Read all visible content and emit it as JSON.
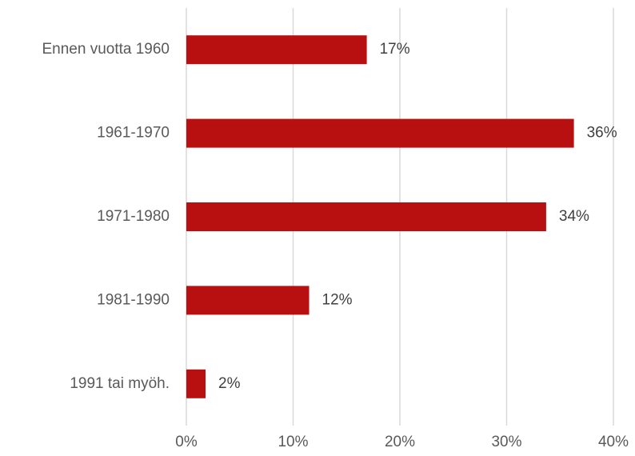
{
  "chart_data": {
    "type": "bar",
    "orientation": "horizontal",
    "categories": [
      "Ennen vuotta 1960",
      "1961-1970",
      "1971-1980",
      "1981-1990",
      "1991 tai myöh."
    ],
    "values": [
      16.9,
      36.3,
      33.7,
      11.5,
      1.8
    ],
    "value_labels": [
      "17%",
      "36%",
      "34%",
      "12%",
      "2%"
    ],
    "color": "#b81010",
    "xlim": [
      0,
      40
    ],
    "xticks": [
      {
        "value": 0,
        "label": "0%"
      },
      {
        "value": 10,
        "label": "10%"
      },
      {
        "value": 20,
        "label": "20%"
      },
      {
        "value": 30,
        "label": "30%"
      },
      {
        "value": 40,
        "label": "40%"
      }
    ],
    "grid": true
  }
}
